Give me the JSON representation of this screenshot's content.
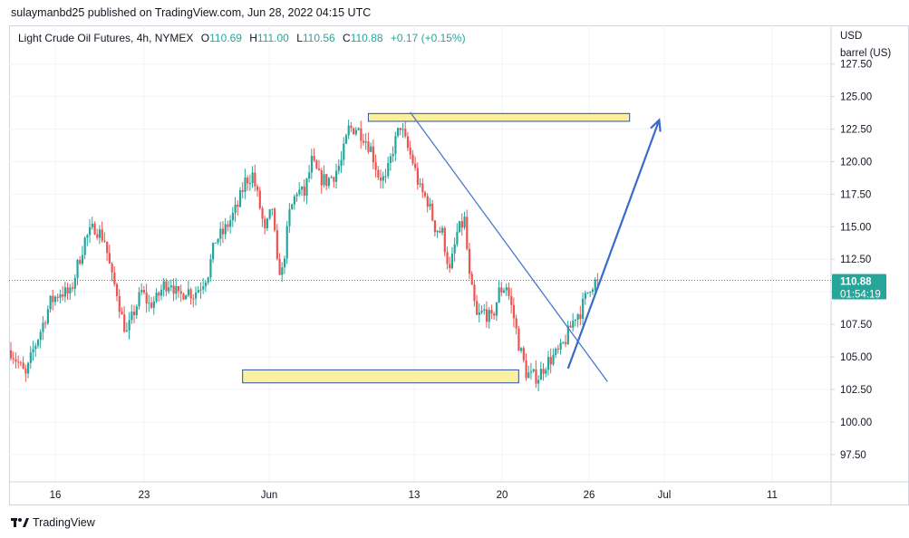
{
  "header": {
    "published_by": "sulaymanbd25 published on TradingView.com, Jun 28, 2022 04:15 UTC"
  },
  "legend": {
    "symbol": "Light Crude Oil Futures, 4h, NYMEX",
    "open_label": "O",
    "open": "110.69",
    "high_label": "H",
    "high": "111.00",
    "low_label": "L",
    "low": "110.56",
    "close_label": "C",
    "close": "110.88",
    "change": "+0.17 (+0.15%)"
  },
  "axis_unit": {
    "line1": "USD",
    "line2": "barrel (US)"
  },
  "last_price": {
    "price": "110.88",
    "countdown": "01:54:19"
  },
  "footer": {
    "brand": "TradingView"
  },
  "colors": {
    "up": "#26a69a",
    "down": "#ef5350",
    "zone_fill": "#fbf0a0",
    "zone_border": "#2a4fa8",
    "line": "#4a78c8",
    "arrow": "#3a6bc8",
    "tag": "#26a69a"
  },
  "chart_data": {
    "type": "candlestick",
    "interval": "4h",
    "x_ticks": [
      "16",
      "23",
      "Jun",
      "13",
      "20",
      "26",
      "Jul",
      "11"
    ],
    "y_ticks": [
      "97.50",
      "100.00",
      "102.50",
      "105.00",
      "107.50",
      "110.00",
      "112.50",
      "115.00",
      "117.50",
      "120.00",
      "122.50",
      "125.00",
      "127.50"
    ],
    "ylim": [
      96.3,
      129.5
    ],
    "price_anchors": [
      [
        0,
        105.5
      ],
      [
        3,
        104.5
      ],
      [
        6,
        103.5
      ],
      [
        9,
        105.5
      ],
      [
        12,
        107
      ],
      [
        16,
        109.2
      ],
      [
        20,
        110
      ],
      [
        24,
        109.8
      ],
      [
        27,
        112
      ],
      [
        30,
        114
      ],
      [
        34,
        115
      ],
      [
        38,
        114
      ],
      [
        41,
        111
      ],
      [
        43,
        110
      ],
      [
        45,
        108
      ],
      [
        47,
        106.8
      ],
      [
        50,
        108.5
      ],
      [
        53,
        110
      ],
      [
        56,
        109
      ],
      [
        59,
        109.4
      ],
      [
        62,
        110.5
      ],
      [
        65,
        110.8
      ],
      [
        68,
        109.5
      ],
      [
        71,
        110.2
      ],
      [
        74,
        109.8
      ],
      [
        77,
        110.5
      ],
      [
        80,
        111.5
      ],
      [
        83,
        114
      ],
      [
        86,
        114.5
      ],
      [
        89,
        115.5
      ],
      [
        92,
        116.6
      ],
      [
        95,
        118.5
      ],
      [
        98,
        119
      ],
      [
        101,
        116.5
      ],
      [
        103,
        114.5
      ],
      [
        106,
        116.5
      ],
      [
        108,
        112
      ],
      [
        110,
        111.5
      ],
      [
        113,
        116
      ],
      [
        116,
        117.8
      ],
      [
        119,
        117.5
      ],
      [
        122,
        120
      ],
      [
        125,
        118.8
      ],
      [
        128,
        118.5
      ],
      [
        131,
        119
      ],
      [
        134,
        120
      ],
      [
        137,
        122.5
      ],
      [
        140,
        122.6
      ],
      [
        143,
        122
      ],
      [
        146,
        121
      ],
      [
        149,
        119
      ],
      [
        152,
        118.5
      ],
      [
        155,
        121
      ],
      [
        158,
        122.8
      ],
      [
        160,
        121.5
      ],
      [
        163,
        120
      ],
      [
        166,
        117.8
      ],
      [
        169,
        117
      ],
      [
        172,
        115
      ],
      [
        175,
        114.5
      ],
      [
        178,
        111.5
      ],
      [
        181,
        114.5
      ],
      [
        184,
        115.5
      ],
      [
        186,
        111
      ],
      [
        189,
        108
      ],
      [
        192,
        108.5
      ],
      [
        195,
        107.8
      ],
      [
        198,
        110
      ],
      [
        201,
        110.5
      ],
      [
        204,
        108
      ],
      [
        206,
        106
      ],
      [
        209,
        103.8
      ],
      [
        211,
        103.5
      ],
      [
        214,
        103.5
      ],
      [
        217,
        104.5
      ],
      [
        220,
        105
      ],
      [
        223,
        105.5
      ],
      [
        226,
        106.8
      ],
      [
        229,
        108.2
      ],
      [
        231,
        108.5
      ],
      [
        233,
        109.5
      ],
      [
        235,
        110.5
      ],
      [
        238,
        110.88
      ]
    ],
    "annotations": [
      {
        "type": "zone",
        "time_start": 94,
        "time_end": 206,
        "price_low": 103,
        "price_high": 104
      },
      {
        "type": "zone",
        "time_start": 145,
        "time_end": 251,
        "price_low": 123.1,
        "price_high": 123.7
      },
      {
        "type": "trendline",
        "from": [
          162,
          123.8
        ],
        "to": [
          242,
          103.1
        ]
      },
      {
        "type": "arrow",
        "from": [
          226,
          104.1
        ],
        "to": [
          263,
          123.2
        ]
      }
    ],
    "last_close": 110.88
  }
}
